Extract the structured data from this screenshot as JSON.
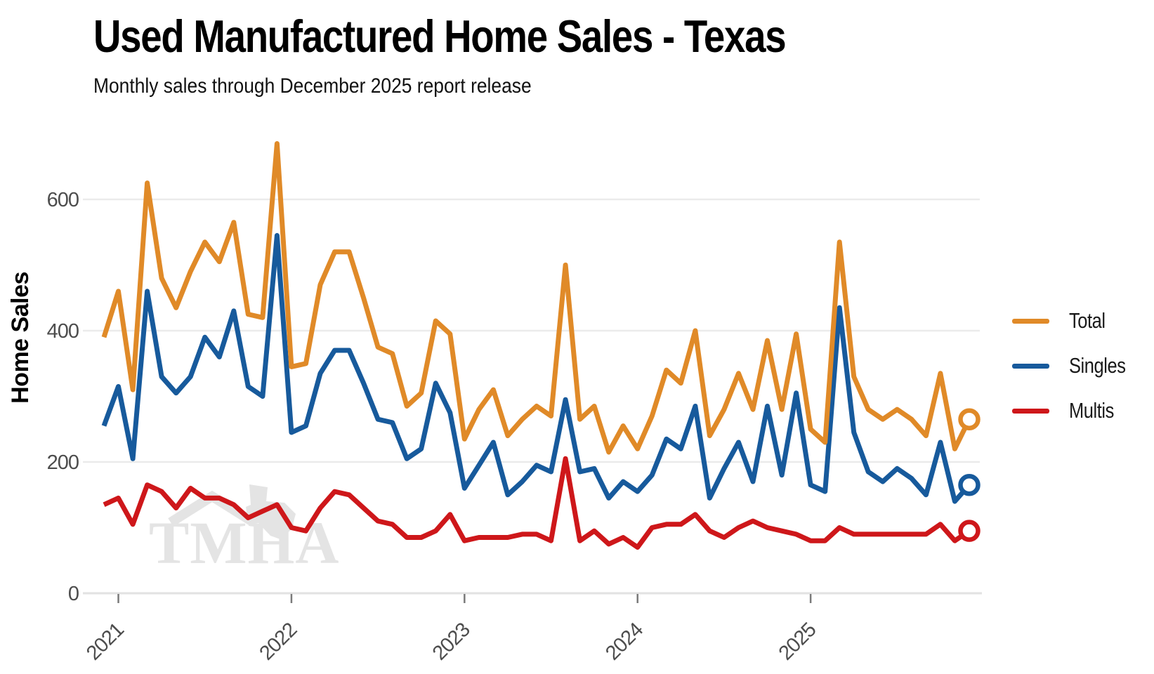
{
  "header": {
    "title": "Used Manufactured Home Sales - Texas",
    "subtitle": "Monthly sales through December 2025 report release"
  },
  "y_axis": {
    "label": "Home Sales",
    "ticks": [
      0,
      200,
      400,
      600
    ]
  },
  "x_axis": {
    "tick_labels": [
      "2021",
      "2022",
      "2023",
      "2024",
      "2025"
    ]
  },
  "legend": {
    "position": "right",
    "items": [
      "Total",
      "Singles",
      "Multis"
    ]
  },
  "watermark": {
    "text": "TMHA"
  },
  "colors": {
    "total": "#E08A28",
    "singles": "#175A9C",
    "multis": "#CE171A",
    "gridline": "#EBEBEB",
    "axis_line": "#E2E2E2",
    "tick_mark": "#7a7a7a",
    "tick_text": "#4d4d4d",
    "watermark": "#E4E4E4"
  },
  "chart_data": {
    "type": "line",
    "title": "Used Manufactured Home Sales - Texas",
    "subtitle": "Monthly sales through December 2025 report release",
    "xlabel": "",
    "ylabel": "Home Sales",
    "ylim": [
      0,
      720
    ],
    "yticks": [
      0,
      200,
      400,
      600
    ],
    "grid": "horizontal",
    "legend_position": "right",
    "end_marker": "open-circle",
    "x_year_ticks": [
      "2021",
      "2022",
      "2023",
      "2024",
      "2025"
    ],
    "x": [
      "Dec 2020",
      "Jan 2021",
      "Feb 2021",
      "Mar 2021",
      "Apr 2021",
      "May 2021",
      "Jun 2021",
      "Jul 2021",
      "Aug 2021",
      "Sep 2021",
      "Oct 2021",
      "Nov 2021",
      "Dec 2021",
      "Jan 2022",
      "Feb 2022",
      "Mar 2022",
      "Apr 2022",
      "May 2022",
      "Jun 2022",
      "Jul 2022",
      "Aug 2022",
      "Sep 2022",
      "Oct 2022",
      "Nov 2022",
      "Dec 2022",
      "Jan 2023",
      "Feb 2023",
      "Mar 2023",
      "Apr 2023",
      "May 2023",
      "Jun 2023",
      "Jul 2023",
      "Aug 2023",
      "Sep 2023",
      "Oct 2023",
      "Nov 2023",
      "Dec 2023",
      "Jan 2024",
      "Feb 2024",
      "Mar 2024",
      "Apr 2024",
      "May 2024",
      "Jun 2024",
      "Jul 2024",
      "Aug 2024",
      "Sep 2024",
      "Oct 2024",
      "Nov 2024",
      "Dec 2024",
      "Jan 2025",
      "Feb 2025",
      "Mar 2025",
      "Apr 2025",
      "May 2025",
      "Jun 2025",
      "Jul 2025",
      "Aug 2025",
      "Sep 2025",
      "Oct 2025",
      "Nov 2025",
      "Dec 2025"
    ],
    "series": [
      {
        "name": "Total",
        "color": "#E08A28",
        "values": [
          390,
          460,
          310,
          625,
          480,
          435,
          490,
          535,
          505,
          565,
          425,
          420,
          685,
          345,
          350,
          470,
          520,
          520,
          450,
          375,
          365,
          285,
          305,
          415,
          395,
          235,
          280,
          310,
          240,
          265,
          285,
          270,
          500,
          265,
          285,
          215,
          255,
          220,
          270,
          340,
          320,
          400,
          240,
          280,
          335,
          280,
          385,
          280,
          395,
          250,
          230,
          535,
          330,
          280,
          265,
          280,
          265,
          240,
          335,
          220,
          265
        ]
      },
      {
        "name": "Singles",
        "color": "#175A9C",
        "values": [
          255,
          315,
          205,
          460,
          330,
          305,
          330,
          390,
          360,
          430,
          315,
          300,
          545,
          245,
          255,
          335,
          370,
          370,
          320,
          265,
          260,
          205,
          220,
          320,
          275,
          160,
          195,
          230,
          150,
          170,
          195,
          185,
          295,
          185,
          190,
          145,
          170,
          155,
          180,
          235,
          220,
          285,
          145,
          190,
          230,
          170,
          285,
          180,
          305,
          165,
          155,
          435,
          245,
          185,
          170,
          190,
          175,
          150,
          230,
          140,
          165
        ]
      },
      {
        "name": "Multis",
        "color": "#CE171A",
        "values": [
          135,
          145,
          105,
          165,
          155,
          130,
          160,
          145,
          145,
          135,
          115,
          125,
          135,
          100,
          95,
          130,
          155,
          150,
          130,
          110,
          105,
          85,
          85,
          95,
          120,
          80,
          85,
          85,
          85,
          90,
          90,
          80,
          205,
          80,
          95,
          75,
          85,
          70,
          100,
          105,
          105,
          120,
          95,
          85,
          100,
          110,
          100,
          95,
          90,
          80,
          80,
          100,
          90,
          90,
          90,
          90,
          90,
          90,
          105,
          80,
          95
        ]
      }
    ]
  }
}
